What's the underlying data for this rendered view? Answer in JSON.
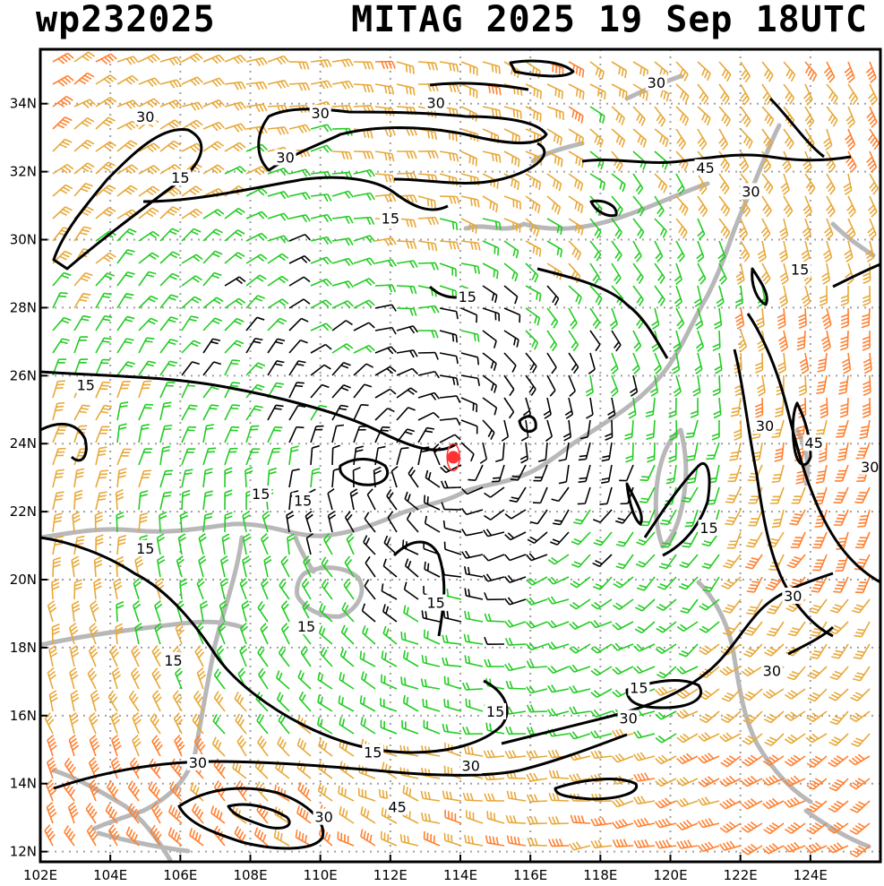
{
  "header": {
    "storm_id": "wp232025",
    "storm_time": "MITAG 2025 19 Sep 18UTC"
  },
  "map": {
    "lon_labels": [
      "102E",
      "104E",
      "106E",
      "108E",
      "110E",
      "112E",
      "114E",
      "116E",
      "118E",
      "120E",
      "122E",
      "124E"
    ],
    "lat_labels": [
      "12N",
      "14N",
      "16N",
      "18N",
      "20N",
      "22N",
      "24N",
      "26N",
      "28N",
      "30N",
      "32N",
      "34N"
    ],
    "lon_range": [
      102,
      126
    ],
    "lat_range": [
      11.7,
      35.6
    ],
    "grid": true,
    "storm_center": {
      "lon": 113.8,
      "lat": 23.6
    },
    "colors": {
      "calm": "#000000",
      "moderate": "#22cc22",
      "strong": "#e8a838",
      "very_strong": "#ff8030",
      "extreme": "#ff3030",
      "coast": "#b8b8b8",
      "center": "#ff3333"
    },
    "contour_labels": [
      {
        "text": "30",
        "lon": 119.6,
        "lat": 34.6
      },
      {
        "text": "30",
        "lon": 113.3,
        "lat": 34.0
      },
      {
        "text": "30",
        "lon": 110.0,
        "lat": 33.7
      },
      {
        "text": "30",
        "lon": 105.0,
        "lat": 33.6
      },
      {
        "text": "30",
        "lon": 109.0,
        "lat": 32.4
      },
      {
        "text": "15",
        "lon": 106.0,
        "lat": 31.8
      },
      {
        "text": "45",
        "lon": 121.0,
        "lat": 32.1
      },
      {
        "text": "30",
        "lon": 122.3,
        "lat": 31.4
      },
      {
        "text": "15",
        "lon": 112.0,
        "lat": 30.6
      },
      {
        "text": "15",
        "lon": 123.7,
        "lat": 29.1
      },
      {
        "text": "15",
        "lon": 114.2,
        "lat": 28.3
      },
      {
        "text": "15",
        "lon": 103.3,
        "lat": 25.7
      },
      {
        "text": "30",
        "lon": 122.7,
        "lat": 24.5
      },
      {
        "text": "45",
        "lon": 124.1,
        "lat": 24.0
      },
      {
        "text": "30",
        "lon": 125.7,
        "lat": 23.3
      },
      {
        "text": "15",
        "lon": 108.3,
        "lat": 22.5
      },
      {
        "text": "15",
        "lon": 109.5,
        "lat": 22.3
      },
      {
        "text": "15",
        "lon": 105.0,
        "lat": 20.9
      },
      {
        "text": "15",
        "lon": 121.1,
        "lat": 21.5
      },
      {
        "text": "30",
        "lon": 123.5,
        "lat": 19.5
      },
      {
        "text": "15",
        "lon": 113.3,
        "lat": 19.3
      },
      {
        "text": "15",
        "lon": 109.6,
        "lat": 18.6
      },
      {
        "text": "15",
        "lon": 105.8,
        "lat": 17.6
      },
      {
        "text": "30",
        "lon": 122.9,
        "lat": 17.3
      },
      {
        "text": "15",
        "lon": 119.1,
        "lat": 16.8
      },
      {
        "text": "15",
        "lon": 115.0,
        "lat": 16.1
      },
      {
        "text": "30",
        "lon": 118.8,
        "lat": 15.9
      },
      {
        "text": "15",
        "lon": 111.5,
        "lat": 14.9
      },
      {
        "text": "30",
        "lon": 114.3,
        "lat": 14.5
      },
      {
        "text": "30",
        "lon": 106.5,
        "lat": 14.6
      },
      {
        "text": "45",
        "lon": 112.2,
        "lat": 13.3
      },
      {
        "text": "30",
        "lon": 110.1,
        "lat": 13.0
      }
    ]
  }
}
